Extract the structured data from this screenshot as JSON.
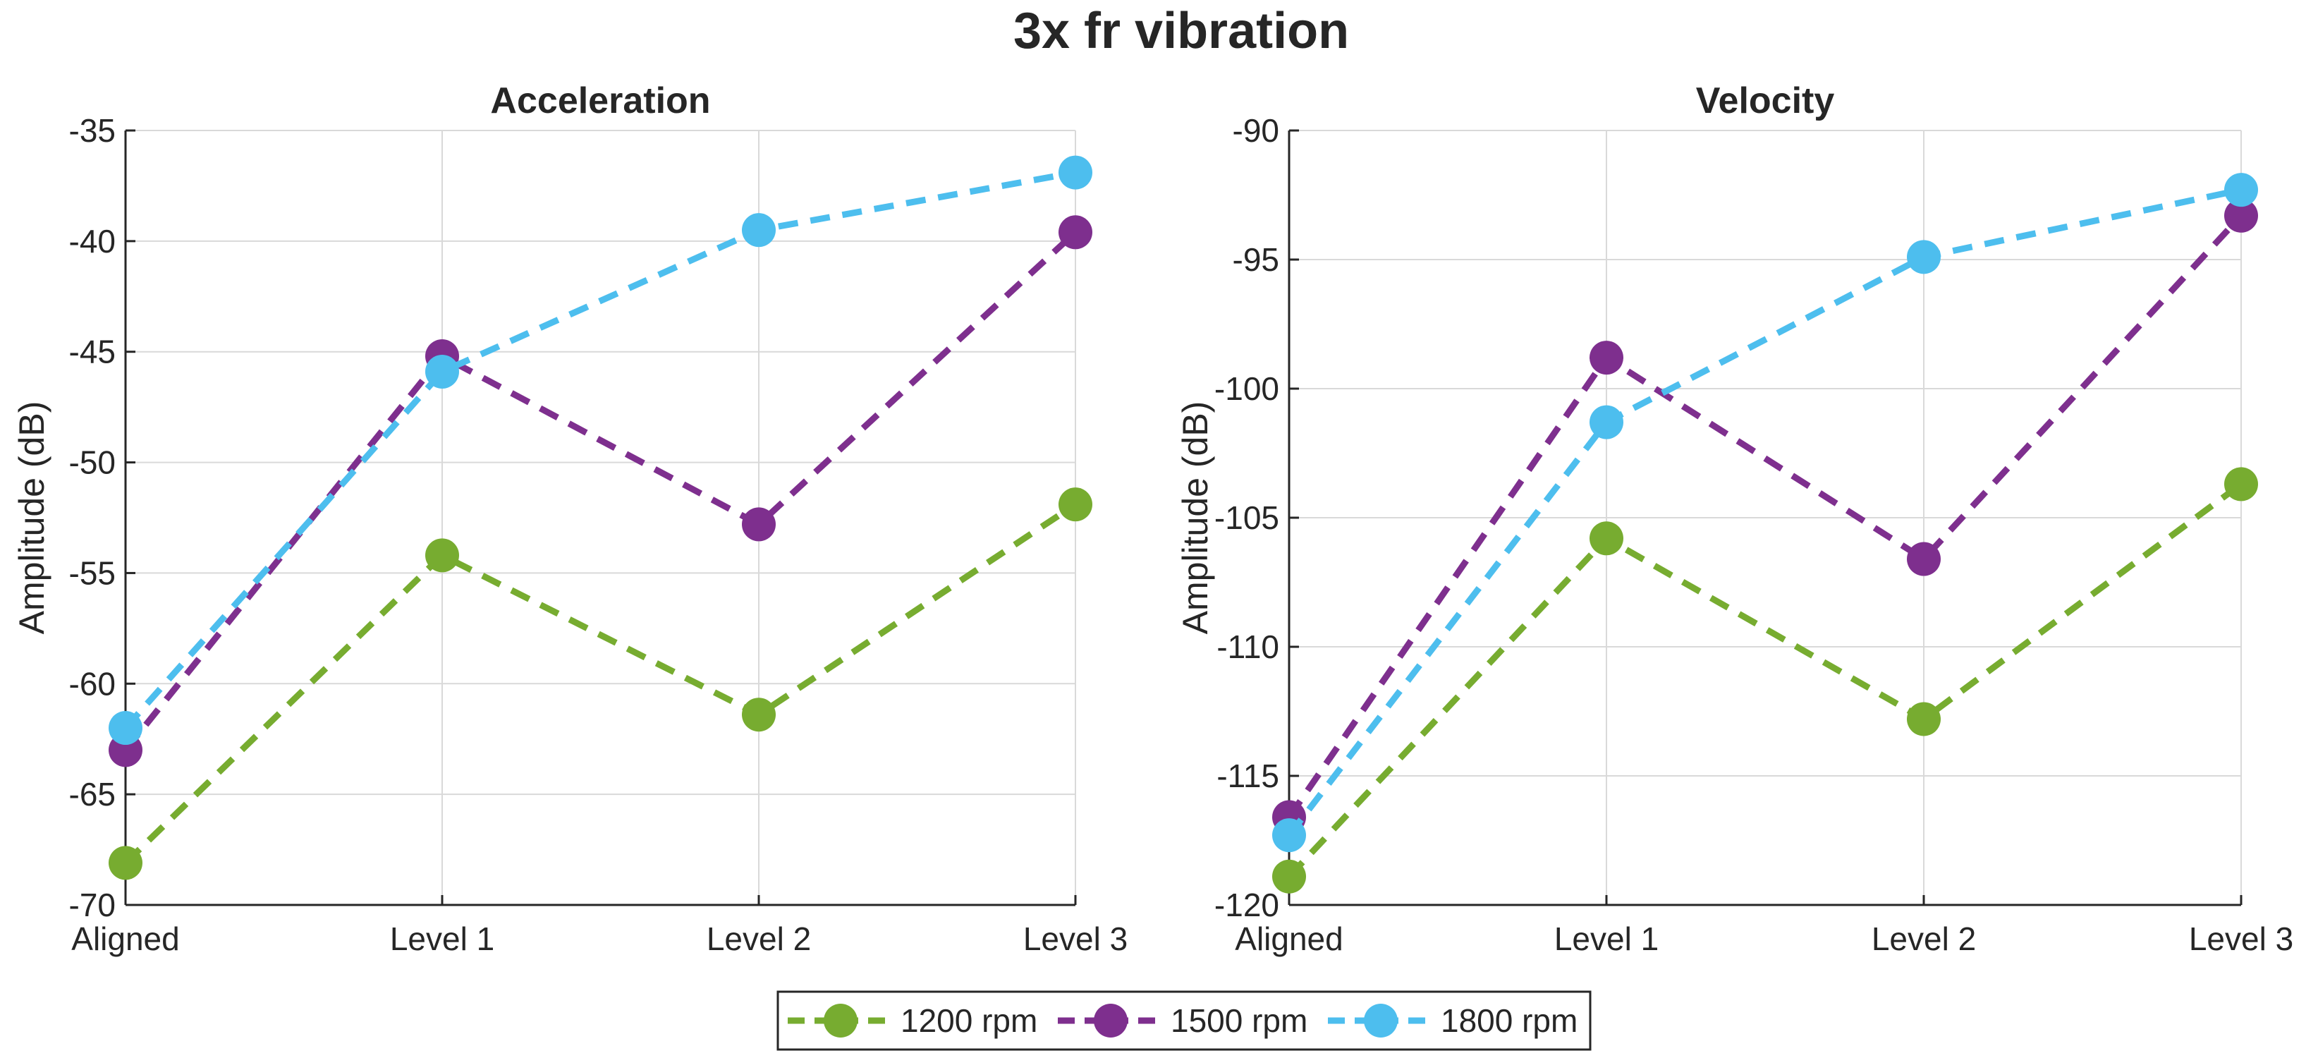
{
  "title": "3x fr vibration",
  "legend": {
    "placement": "bottom-center",
    "entries": [
      {
        "label": "1200 rpm",
        "color": "#77AC30"
      },
      {
        "label": "1500 rpm",
        "color": "#7E2F8E"
      },
      {
        "label": "1800 rpm",
        "color": "#4DBEEE"
      }
    ]
  },
  "chart_data": [
    {
      "type": "line",
      "title": "Acceleration",
      "xlabel": "",
      "ylabel": "Amplitude (dB)",
      "categories": [
        "Aligned",
        "Level 1",
        "Level 2",
        "Level 3"
      ],
      "ylim": [
        -70,
        -35
      ],
      "yticks": [
        -70,
        -65,
        -60,
        -55,
        -50,
        -45,
        -40,
        -35
      ],
      "grid": true,
      "series": [
        {
          "name": "1200 rpm",
          "color": "#77AC30",
          "values": [
            -68.1,
            -54.2,
            -61.4,
            -51.9
          ]
        },
        {
          "name": "1500 rpm",
          "color": "#7E2F8E",
          "values": [
            -63.0,
            -45.2,
            -52.8,
            -39.6
          ]
        },
        {
          "name": "1800 rpm",
          "color": "#4DBEEE",
          "values": [
            -62.0,
            -45.9,
            -39.5,
            -36.9
          ]
        }
      ]
    },
    {
      "type": "line",
      "title": "Velocity",
      "xlabel": "",
      "ylabel": "Amplitude (dB)",
      "categories": [
        "Aligned",
        "Level 1",
        "Level 2",
        "Level 3"
      ],
      "ylim": [
        -120,
        -90
      ],
      "yticks": [
        -120,
        -115,
        -110,
        -105,
        -100,
        -95,
        -90
      ],
      "grid": true,
      "series": [
        {
          "name": "1200 rpm",
          "color": "#77AC30",
          "values": [
            -118.9,
            -105.8,
            -112.8,
            -103.7
          ]
        },
        {
          "name": "1500 rpm",
          "color": "#7E2F8E",
          "values": [
            -116.6,
            -98.8,
            -106.6,
            -93.3
          ]
        },
        {
          "name": "1800 rpm",
          "color": "#4DBEEE",
          "values": [
            -117.3,
            -101.3,
            -94.9,
            -92.3
          ]
        }
      ]
    }
  ]
}
